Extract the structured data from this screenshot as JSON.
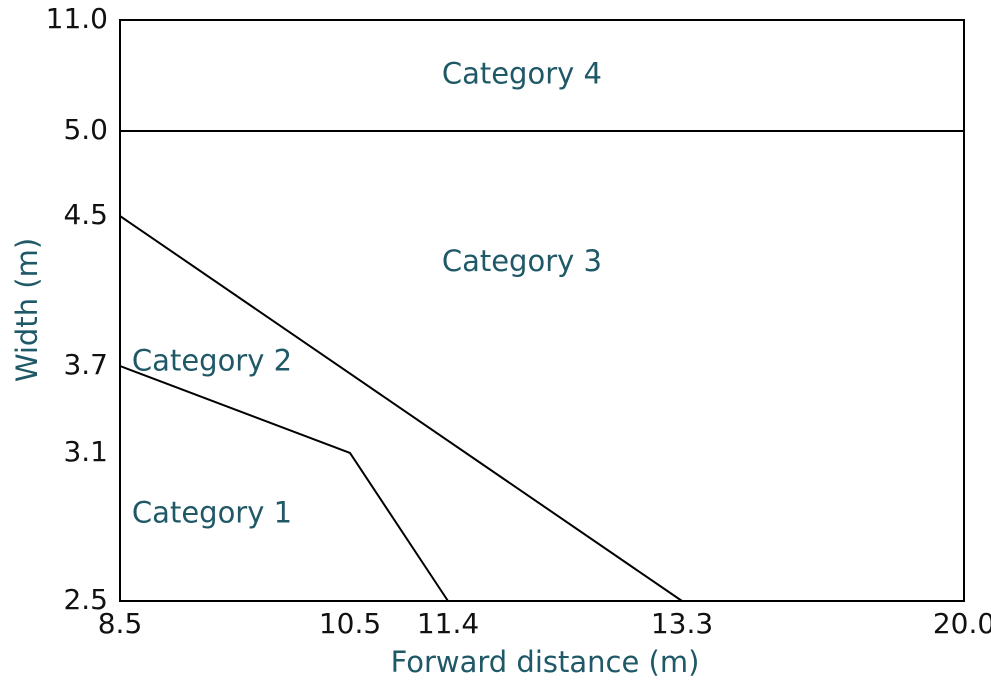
{
  "colors": {
    "accent": "#1f5866",
    "line": "#000000",
    "tick_text": "#111111"
  },
  "chart_data": {
    "type": "line",
    "xlabel": "Forward distance (m)",
    "ylabel": "Width (m)",
    "xlim": [
      8.5,
      20.0
    ],
    "ylim": [
      2.5,
      11.0
    ],
    "x_ticks": [
      "8.5",
      "10.5",
      "11.4",
      "13.3",
      "20.0"
    ],
    "y_ticks": [
      "2.5",
      "3.1",
      "3.7",
      "4.5",
      "5.0",
      "11.0"
    ],
    "series": [
      {
        "points": [
          [
            8.5,
            3.7
          ],
          [
            10.5,
            3.1
          ],
          [
            11.4,
            2.5
          ]
        ]
      },
      {
        "points": [
          [
            8.5,
            4.5
          ],
          [
            13.3,
            2.5
          ]
        ]
      },
      {
        "points": [
          [
            8.5,
            5.0
          ],
          [
            20.0,
            5.0
          ]
        ]
      }
    ],
    "regions": [
      {
        "label": "Category 1",
        "x": 9.3,
        "y": 2.85
      },
      {
        "label": "Category 2",
        "x": 9.3,
        "y": 3.72
      },
      {
        "label": "Category 3",
        "x": 12.0,
        "y": 4.25
      },
      {
        "label": "Category 4",
        "x": 12.0,
        "y": 8.0
      }
    ]
  }
}
